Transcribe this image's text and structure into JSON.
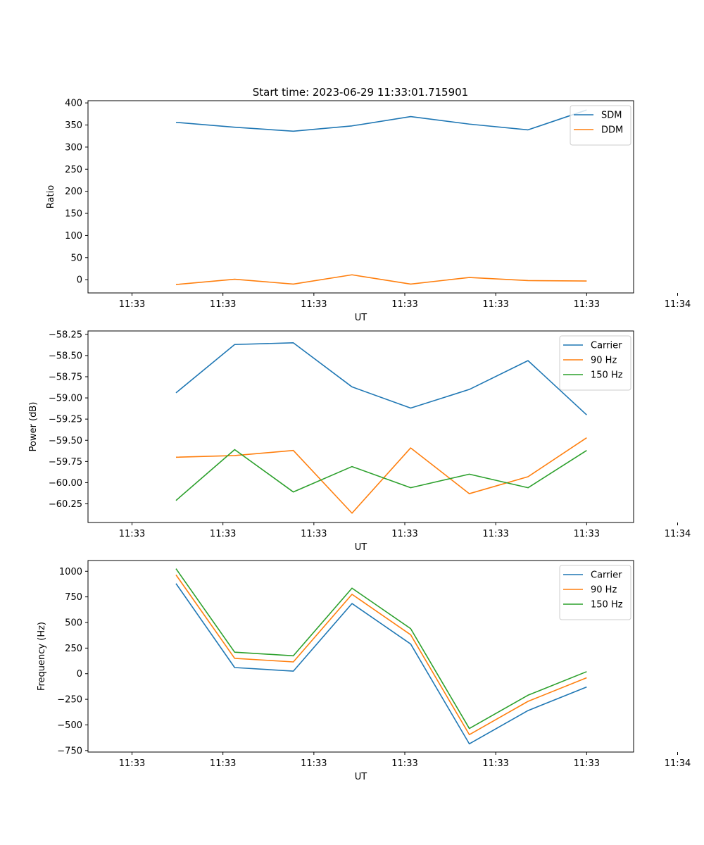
{
  "title": "Start time: 2023-06-29 11:33:01.715901",
  "chart_data": [
    {
      "type": "line",
      "ylabel": "Ratio",
      "xlabel": "UT",
      "xticks": [
        "11:33",
        "11:33",
        "11:33",
        "11:33",
        "11:33",
        "11:33",
        "11:34"
      ],
      "ylim": [
        -30,
        405
      ],
      "yticks": [
        0,
        50,
        100,
        150,
        200,
        250,
        300,
        350,
        400
      ],
      "ytick_labels": [
        "0",
        "50",
        "100",
        "150",
        "200",
        "250",
        "300",
        "350",
        "400"
      ],
      "legend": "top-right",
      "colors": [
        "#1f77b4",
        "#ff7f0e"
      ],
      "series": [
        {
          "name": "SDM",
          "values": [
            356,
            345,
            336,
            348,
            369,
            352,
            339,
            384
          ]
        },
        {
          "name": "DDM",
          "values": [
            -11,
            1,
            -10,
            11,
            -10,
            5,
            -2,
            -3
          ]
        }
      ]
    },
    {
      "type": "line",
      "ylabel": "Power (dB)",
      "xlabel": "UT",
      "xticks": [
        "11:33",
        "11:33",
        "11:33",
        "11:33",
        "11:33",
        "11:33",
        "11:34"
      ],
      "ylim": [
        -60.47,
        -58.21
      ],
      "yticks": [
        -60.25,
        -60.0,
        -59.75,
        -59.5,
        -59.25,
        -59.0,
        -58.75,
        -58.5,
        -58.25
      ],
      "ytick_labels": [
        "−60.25",
        "−60.00",
        "−59.75",
        "−59.50",
        "−59.25",
        "−59.00",
        "−58.75",
        "−58.50",
        "−58.25"
      ],
      "legend": "top-right",
      "colors": [
        "#1f77b4",
        "#ff7f0e",
        "#2ca02c"
      ],
      "series": [
        {
          "name": "Carrier",
          "values": [
            -58.94,
            -58.37,
            -58.35,
            -58.87,
            -59.12,
            -58.9,
            -58.56,
            -59.2
          ]
        },
        {
          "name": "90 Hz",
          "values": [
            -59.7,
            -59.68,
            -59.62,
            -60.36,
            -59.59,
            -60.13,
            -59.93,
            -59.47
          ]
        },
        {
          "name": "150 Hz",
          "values": [
            -60.21,
            -59.61,
            -60.11,
            -59.81,
            -60.06,
            -59.9,
            -60.06,
            -59.62
          ]
        }
      ]
    },
    {
      "type": "line",
      "ylabel": "Frequency (Hz)",
      "xlabel": "UT",
      "xticks": [
        "11:33",
        "11:33",
        "11:33",
        "11:33",
        "11:33",
        "11:33",
        "11:34"
      ],
      "ylim": [
        -765,
        1105
      ],
      "yticks": [
        -750,
        -500,
        -250,
        0,
        250,
        500,
        750,
        1000
      ],
      "ytick_labels": [
        "−750",
        "−500",
        "−250",
        "0",
        "250",
        "500",
        "750",
        "1000"
      ],
      "legend": "top-right",
      "colors": [
        "#1f77b4",
        "#ff7f0e",
        "#2ca02c"
      ],
      "series": [
        {
          "name": "Carrier",
          "values": [
            880,
            60,
            25,
            685,
            290,
            -685,
            -360,
            -130
          ]
        },
        {
          "name": "90 Hz",
          "values": [
            965,
            150,
            115,
            775,
            380,
            -595,
            -270,
            -40
          ]
        },
        {
          "name": "150 Hz",
          "values": [
            1025,
            210,
            175,
            835,
            440,
            -535,
            -210,
            20
          ]
        }
      ]
    }
  ]
}
